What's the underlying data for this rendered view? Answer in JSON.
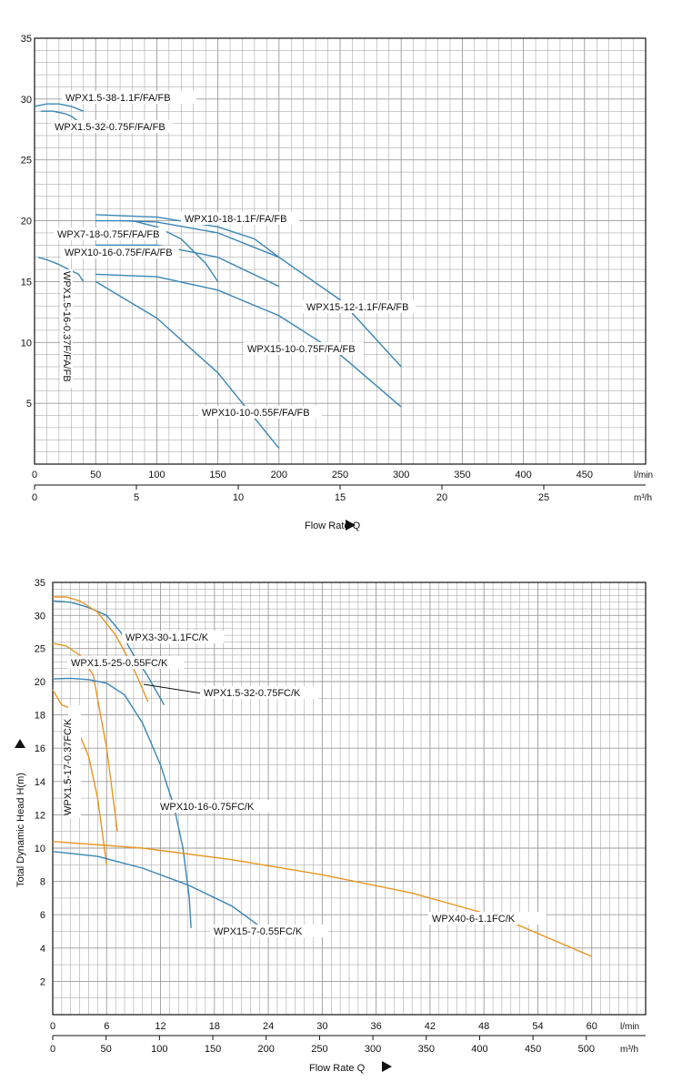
{
  "colors": {
    "blue": "#3a86b5",
    "orange": "#e89521",
    "black": "#111111",
    "grid": "#9a9a9a"
  },
  "chart_data": [
    {
      "type": "line",
      "id": "top",
      "xlabel": "Flow Rate Q",
      "ylabel": "",
      "xlim": [
        0,
        500
      ],
      "ylim": [
        0,
        35
      ],
      "grid": true,
      "x_ticks": [
        "0",
        "50",
        "100",
        "150",
        "200",
        "250",
        "300",
        "350",
        "400",
        "450"
      ],
      "x_unit": "l/min",
      "y_ticks": [
        "5",
        "10",
        "15",
        "20",
        "25",
        "30",
        "35"
      ],
      "secondary_x": {
        "unit": "m³/h",
        "ticks": [
          "0",
          "5",
          "10",
          "15",
          "20",
          "25"
        ]
      },
      "series": [
        {
          "name": "WPX1.5-38-1.1F/FA/FB",
          "color": "blue",
          "x": [
            0,
            10,
            20,
            30,
            40
          ],
          "y": [
            29.4,
            29.6,
            29.6,
            29.4,
            29.0
          ]
        },
        {
          "name": "WPX1.5-32-0.75F/FA/FB",
          "color": "blue",
          "x": [
            5,
            15,
            25,
            30,
            38
          ],
          "y": [
            29.0,
            29.0,
            28.8,
            28.6,
            28.0
          ]
        },
        {
          "name": "WPX1.5-16-0.37F/FA/FB",
          "color": "blue",
          "x": [
            3,
            10,
            20,
            28,
            36,
            40
          ],
          "y": [
            17.0,
            16.8,
            16.4,
            16.0,
            15.6,
            15.0
          ]
        },
        {
          "name": "WPX10-18-1.1F/FA/FB",
          "color": "blue",
          "x": [
            50,
            100,
            150,
            180,
            200
          ],
          "y": [
            20.5,
            20.3,
            19.5,
            18.5,
            17.0
          ]
        },
        {
          "name": "WPX7-18-0.75F/FA/FB",
          "color": "blue",
          "x": [
            50,
            80,
            100,
            120,
            140,
            150
          ],
          "y": [
            20.0,
            20.0,
            19.5,
            18.5,
            16.5,
            15.0
          ]
        },
        {
          "name": "WPX10-16-0.75F/FA/FB",
          "color": "blue",
          "x": [
            50,
            100,
            150,
            200
          ],
          "y": [
            18.0,
            18.0,
            17.0,
            14.6
          ]
        },
        {
          "name": "WPX15-12-1.1F/FA/FB",
          "color": "blue",
          "x": [
            70,
            100,
            150,
            200,
            250,
            300
          ],
          "y": [
            20.0,
            19.9,
            19.0,
            17.0,
            13.5,
            8.0
          ]
        },
        {
          "name": "WPX15-10-0.75F/FA/FB",
          "color": "blue",
          "x": [
            50,
            100,
            150,
            200,
            250,
            300
          ],
          "y": [
            15.6,
            15.4,
            14.3,
            12.2,
            9.0,
            4.7
          ]
        },
        {
          "name": "WPX10-10-0.55F/FA/FB",
          "color": "blue",
          "x": [
            50,
            100,
            150,
            200
          ],
          "y": [
            15.0,
            12.0,
            7.5,
            1.3
          ]
        }
      ],
      "annotations": [
        "WPX1.5-38-1.1F/FA/FB",
        "WPX1.5-32-0.75F/FA/FB",
        "WPX1.5-16-0.37F/FA/FB",
        "WPX10-18-1.1F/FA/FB",
        "WPX7-18-0.75F/FA/FB",
        "WPX10-16-0.75F/FA/FB",
        "WPX15-12-1.1F/FA/FB",
        "WPX15-10-0.75F/FA/FB",
        "WPX10-10-0.55F/FA/FB"
      ]
    },
    {
      "type": "line",
      "id": "bottom",
      "xlabel": "Flow Rate Q",
      "ylabel": "Total Dynamic Head H(m)",
      "xlim": [
        0,
        66
      ],
      "ylim": [
        0,
        35
      ],
      "grid": true,
      "x_ticks": [
        "0",
        "6",
        "12",
        "18",
        "24",
        "30",
        "36",
        "42",
        "48",
        "54",
        "60"
      ],
      "x_unit": "l/min",
      "y_ticks": [
        "2",
        "4",
        "6",
        "8",
        "10",
        "12",
        "14",
        "16",
        "18",
        "20",
        "25",
        "30",
        "35"
      ],
      "secondary_x": {
        "unit": "m³/h",
        "ticks": [
          "0",
          "50",
          "100",
          "150",
          "200",
          "250",
          "300",
          "350",
          "400",
          "450",
          "500"
        ]
      },
      "series": [
        {
          "name": "WPX3-30-1.1FC/K",
          "color": "blue",
          "x": [
            0,
            2,
            4,
            6,
            7.6,
            9,
            10.5,
            12.4
          ],
          "y": [
            32.2,
            32.0,
            31.2,
            30.0,
            27.4,
            24.0,
            21.0,
            18.6
          ]
        },
        {
          "name": "WPX1.5-32-0.75FC/K",
          "color": "orange",
          "x": [
            0,
            1.5,
            3,
            5,
            7,
            9,
            10.6
          ],
          "y": [
            32.8,
            32.8,
            32.2,
            30.5,
            27.0,
            22.0,
            18.8
          ]
        },
        {
          "name": "WPX1.5-25-0.55FC/K",
          "color": "orange",
          "x": [
            0,
            1.5,
            3,
            4.5,
            6,
            7.2
          ],
          "y": [
            25.8,
            25.4,
            24.0,
            21.0,
            16.0,
            11.0
          ]
        },
        {
          "name": "WPX1.5-17-0.37FC/K",
          "color": "orange",
          "x": [
            0,
            1,
            2,
            3,
            4,
            5,
            6
          ],
          "y": [
            19.5,
            18.6,
            18.4,
            16.8,
            15.5,
            13.0,
            9.0
          ]
        },
        {
          "name": "WPX10-16-0.75FC/K",
          "color": "blue",
          "x": [
            0,
            2,
            4,
            6,
            8,
            10,
            12,
            13.5,
            14.5,
            15.2,
            15.4
          ],
          "y": [
            20.4,
            20.5,
            20.3,
            19.9,
            19.2,
            17.5,
            15.0,
            12.5,
            10.0,
            7.0,
            5.2
          ]
        },
        {
          "name": "WPX15-7-0.55FC/K",
          "color": "blue",
          "x": [
            0,
            5,
            10,
            15,
            20,
            22.8
          ],
          "y": [
            9.8,
            9.5,
            8.8,
            7.8,
            6.5,
            5.4
          ]
        },
        {
          "name": "WPX40-6-1.1FC/K",
          "color": "orange",
          "x": [
            0,
            10,
            20,
            30,
            40,
            50,
            60
          ],
          "y": [
            10.4,
            10.0,
            9.3,
            8.4,
            7.3,
            5.8,
            3.5
          ]
        }
      ],
      "annotations": [
        "WPX3-30-1.1FC/K",
        "WPX1.5-25-0.55FC/K",
        "WPX1.5-32-0.75FC/K",
        "WPX1.5-17-0.37FC/K",
        "WPX10-16-0.75FC/K",
        "WPX15-7-0.55FC/K",
        "WPX40-6-1.1FC/K"
      ]
    }
  ]
}
